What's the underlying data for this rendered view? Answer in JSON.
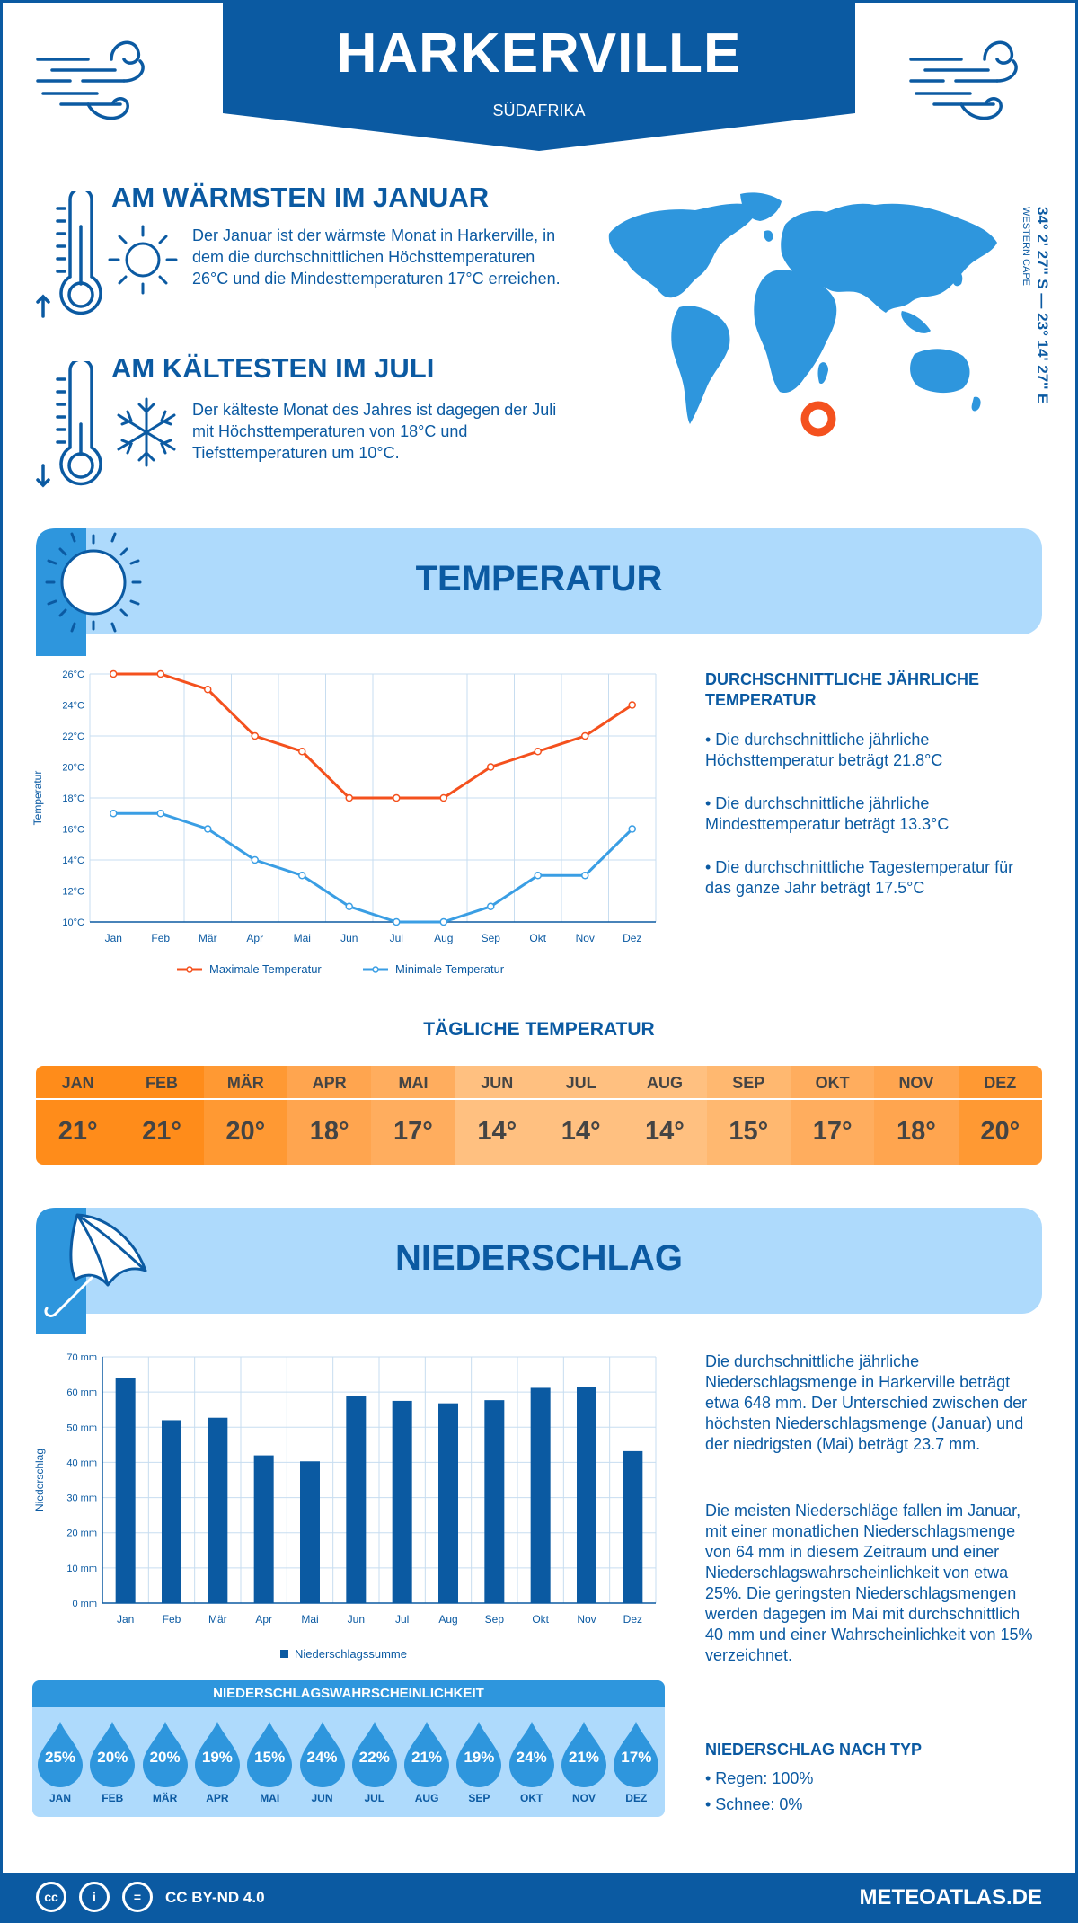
{
  "header": {
    "city": "HARKERVILLE",
    "country": "SÜDAFRIKA"
  },
  "warmest": {
    "title": "AM WÄRMSTEN IM JANUAR",
    "text": "Der Januar ist der wärmste Monat in Harkerville, in dem die durchschnittlichen Höchsttemperaturen 26°C und die Mindesttemperaturen 17°C erreichen."
  },
  "coldest": {
    "title": "AM KÄLTESTEN IM JULI",
    "text": "Der kälteste Monat des Jahres ist dagegen der Juli mit Höchsttemperaturen von 18°C und Tiefsttemperaturen um 10°C."
  },
  "location": {
    "coords": "34° 2' 27'' S — 23° 14' 27'' E",
    "region": "WESTERN CAPE"
  },
  "temperature_section": {
    "title": "TEMPERATUR",
    "side_title": "DURCHSCHNITTLICHE JÄHRLICHE TEMPERATUR",
    "bullets": [
      "• Die durchschnittliche jährliche Höchsttemperatur beträgt 21.8°C",
      "• Die durchschnittliche jährliche Mindesttemperatur beträgt 13.3°C",
      "• Die durchschnittliche Tagestemperatur für das ganze Jahr beträgt 17.5°C"
    ]
  },
  "daily": {
    "title": "TÄGLICHE TEMPERATUR",
    "months": [
      "JAN",
      "FEB",
      "MÄR",
      "APR",
      "MAI",
      "JUN",
      "JUL",
      "AUG",
      "SEP",
      "OKT",
      "NOV",
      "DEZ"
    ],
    "values": [
      "21°",
      "21°",
      "20°",
      "18°",
      "17°",
      "14°",
      "14°",
      "14°",
      "15°",
      "17°",
      "18°",
      "20°"
    ],
    "colors": [
      "#ff8c1a",
      "#ff8c1a",
      "#ff9933",
      "#ffa54f",
      "#ffad5e",
      "#ffc080",
      "#ffc080",
      "#ffc080",
      "#ffb870",
      "#ffad5e",
      "#ffa54f",
      "#ff9933"
    ]
  },
  "precip_section": {
    "title": "NIEDERSCHLAG",
    "text1": "Die durchschnittliche jährliche Niederschlagsmenge in Harkerville beträgt etwa 648 mm. Der Unterschied zwischen der höchsten Niederschlagsmenge (Januar) und der niedrigsten (Mai) beträgt 23.7 mm.",
    "text2": "Die meisten Niederschläge fallen im Januar, mit einer monatlichen Niederschlagsmenge von 64 mm in diesem Zeitraum und einer Niederschlagswahrscheinlichkeit von etwa 25%. Die geringsten Niederschlagsmengen werden dagegen im Mai mit durchschnittlich 40 mm und einer Wahrscheinlichkeit von 15% verzeichnet.",
    "type_title": "NIEDERSCHLAG NACH TYP",
    "type_items": [
      "• Regen: 100%",
      "• Schnee: 0%"
    ]
  },
  "probability": {
    "title": "NIEDERSCHLAGSWAHRSCHEINLICHKEIT",
    "months": [
      "JAN",
      "FEB",
      "MÄR",
      "APR",
      "MAI",
      "JUN",
      "JUL",
      "AUG",
      "SEP",
      "OKT",
      "NOV",
      "DEZ"
    ],
    "values": [
      "25%",
      "20%",
      "20%",
      "19%",
      "15%",
      "24%",
      "22%",
      "21%",
      "19%",
      "24%",
      "21%",
      "17%"
    ]
  },
  "footer": {
    "license": "CC BY-ND 4.0",
    "site": "METEOATLAS.DE"
  },
  "colors": {
    "primary": "#0b5aa2",
    "max_line": "#f4511e",
    "min_line": "#3a9ee4",
    "bar": "#0b5aa2",
    "light": "#aedafc"
  },
  "chart_data": [
    {
      "type": "line",
      "ylabel": "Temperatur",
      "categories": [
        "Jan",
        "Feb",
        "Mär",
        "Apr",
        "Mai",
        "Jun",
        "Jul",
        "Aug",
        "Sep",
        "Okt",
        "Nov",
        "Dez"
      ],
      "yticks": [
        "10°C",
        "12°C",
        "14°C",
        "16°C",
        "18°C",
        "20°C",
        "22°C",
        "24°C",
        "26°C"
      ],
      "ylim": [
        10,
        26
      ],
      "grid": true,
      "legend": "bottom",
      "series": [
        {
          "name": "Maximale Temperatur",
          "values": [
            26,
            26,
            25,
            22,
            21,
            18,
            18,
            18,
            20,
            21,
            22,
            24
          ]
        },
        {
          "name": "Minimale Temperatur",
          "values": [
            17,
            17,
            16,
            14,
            13,
            11,
            10,
            10,
            11,
            13,
            13,
            16
          ]
        }
      ]
    },
    {
      "type": "bar",
      "ylabel": "Niederschlag",
      "categories": [
        "Jan",
        "Feb",
        "Mär",
        "Apr",
        "Mai",
        "Jun",
        "Jul",
        "Aug",
        "Sep",
        "Okt",
        "Nov",
        "Dez"
      ],
      "yticks": [
        "0 mm",
        "10 mm",
        "20 mm",
        "30 mm",
        "40 mm",
        "50 mm",
        "60 mm",
        "70 mm"
      ],
      "ylim": [
        0,
        70
      ],
      "grid": true,
      "legend": "bottom",
      "series": [
        {
          "name": "Niederschlagssumme",
          "values": [
            64,
            52,
            52.7,
            42,
            40.3,
            59,
            57.5,
            56.8,
            57.7,
            61.2,
            61.5,
            43.2
          ]
        }
      ]
    }
  ]
}
